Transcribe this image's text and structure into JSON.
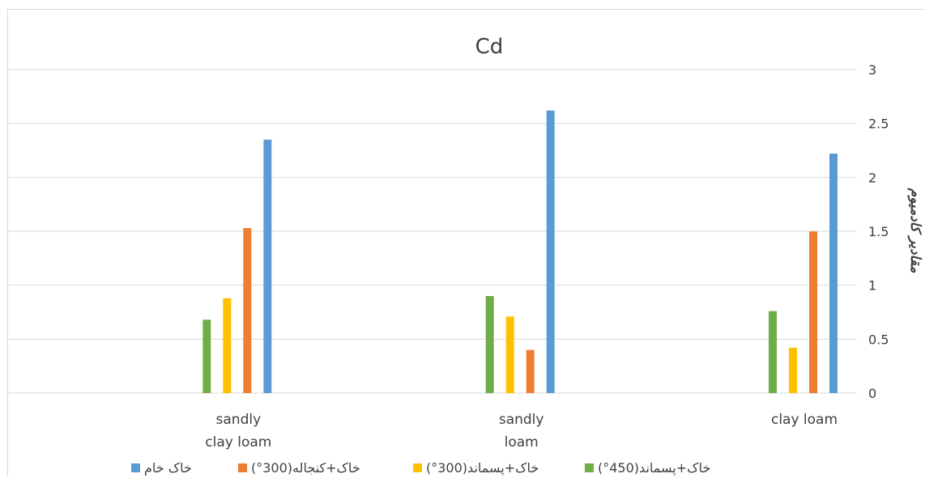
{
  "chart_data": {
    "type": "bar",
    "title": "Cd",
    "ylabel": "مقادیر کادمیوم",
    "xlabel": "",
    "ylim": [
      0,
      3
    ],
    "yticks": [
      "0",
      "0.5",
      "1",
      "1.5",
      "2",
      "2.5",
      "3"
    ],
    "y_axis_position": "right",
    "grid": true,
    "legend_position": "bottom",
    "categories": [
      [
        "sandly",
        "clay loam"
      ],
      [
        "sandly",
        "loam"
      ],
      [
        "clay loam"
      ]
    ],
    "series": [
      {
        "name": "خاک+پسماند(450°)",
        "color": "#70ad47",
        "values": [
          0.68,
          0.9,
          0.76
        ]
      },
      {
        "name": "خاک+پسماند(300°)",
        "color": "#ffc000",
        "values": [
          0.88,
          0.71,
          0.42
        ]
      },
      {
        "name": "خاک+کنجاله(300°)",
        "color": "#ed7d31",
        "values": [
          1.53,
          0.4,
          1.5
        ]
      },
      {
        "name": "خاک خام",
        "color": "#5b9bd5",
        "values": [
          2.35,
          2.62,
          2.22
        ]
      }
    ]
  }
}
